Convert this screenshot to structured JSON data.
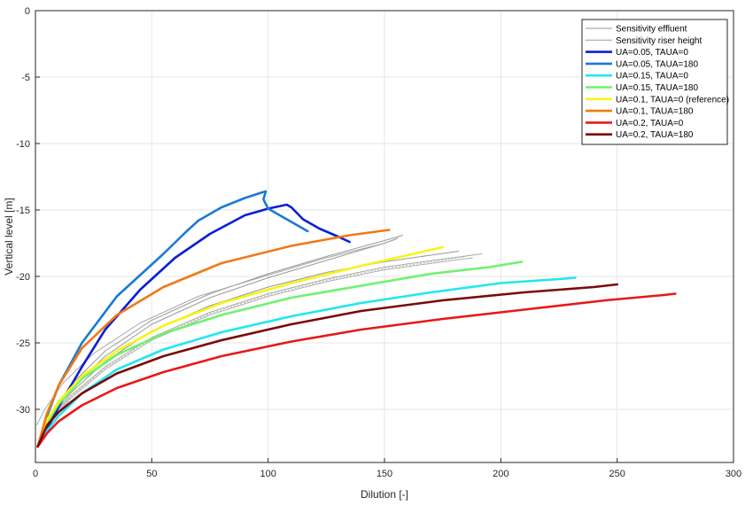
{
  "chart_data": {
    "type": "line",
    "title": "",
    "xlabel": "Dilution [-]",
    "ylabel": "Vertical level [m]",
    "xlim": [
      0,
      300
    ],
    "ylim": [
      -34,
      0
    ],
    "xticks": [
      0,
      50,
      100,
      150,
      200,
      250,
      300
    ],
    "yticks": [
      0,
      -5,
      -10,
      -15,
      -20,
      -25,
      -30
    ],
    "grid": true,
    "legend_position": "top-right",
    "colors": {
      "grid": "#e6e6e6",
      "axis": "#262626",
      "sensitivity": "#a0a0a0"
    },
    "sensitivity_series": [
      {
        "name": "Sensitivity effluent",
        "color": "#9a9a9a",
        "style": "thin",
        "x": [
          1,
          6,
          15,
          30,
          50,
          75,
          100,
          125,
          150,
          158
        ],
        "y": [
          -32.8,
          -30.6,
          -28.2,
          -25.6,
          -23.3,
          -21.3,
          -19.8,
          -18.5,
          -17.3,
          -16.9
        ]
      },
      {
        "name": "Sensitivity riser height",
        "color": "#9a9a9a",
        "style": "thin",
        "x": [
          1,
          6,
          15,
          30,
          50,
          75,
          100,
          125,
          150,
          155
        ],
        "y": [
          -32.8,
          -30.8,
          -28.5,
          -26.0,
          -23.6,
          -21.6,
          -20.1,
          -18.8,
          -17.5,
          -17.2
        ]
      },
      {
        "name": "",
        "color": "#a8a8a8",
        "style": "thin",
        "x": [
          0.5,
          4,
          12,
          25,
          45,
          70,
          100,
          125,
          150,
          156
        ],
        "y": [
          -31.2,
          -30.0,
          -28.0,
          -25.8,
          -23.5,
          -21.5,
          -19.9,
          -18.6,
          -17.5,
          -17.1
        ]
      },
      {
        "name": "",
        "color": "#9a9a9a",
        "style": "thin",
        "x": [
          1,
          6,
          15,
          30,
          50,
          75,
          100,
          125,
          150,
          170,
          182
        ],
        "y": [
          -32.8,
          -30.9,
          -28.8,
          -26.4,
          -24.1,
          -22.2,
          -20.8,
          -19.7,
          -18.9,
          -18.4,
          -18.1
        ]
      },
      {
        "name": "",
        "color": "#a8a8a8",
        "style": "thin",
        "x": [
          1,
          6,
          15,
          30,
          50,
          75,
          100,
          125,
          150,
          175,
          192
        ],
        "y": [
          -32.8,
          -31.0,
          -29.0,
          -26.8,
          -24.6,
          -22.7,
          -21.3,
          -20.2,
          -19.3,
          -18.7,
          -18.3
        ]
      },
      {
        "name": "",
        "color": "#b0b0b0",
        "style": "thin",
        "x": [
          1,
          6,
          15,
          30,
          50,
          75,
          100,
          125,
          150,
          175,
          188
        ],
        "y": [
          -32.8,
          -31.1,
          -29.2,
          -27.0,
          -24.8,
          -22.9,
          -21.5,
          -20.4,
          -19.5,
          -18.9,
          -18.6
        ]
      },
      {
        "name": "",
        "color": "#b8b8b8",
        "style": "dotted",
        "x": [
          1,
          6,
          15,
          30,
          50,
          75,
          100,
          125,
          150,
          175,
          185
        ],
        "y": [
          -32.8,
          -31.0,
          -29.1,
          -26.9,
          -24.7,
          -22.8,
          -21.4,
          -20.3,
          -19.4,
          -18.8,
          -18.5
        ]
      }
    ],
    "series": [
      {
        "name": "UA=0.05, TAUA=0",
        "color": "#0a1fd6",
        "x": [
          1,
          5,
          10,
          20,
          30,
          45,
          60,
          75,
          90,
          100,
          108,
          110,
          115,
          122,
          130,
          135
        ],
        "y": [
          -32.8,
          -31.5,
          -29.8,
          -26.8,
          -24.0,
          -21.0,
          -18.6,
          -16.8,
          -15.4,
          -14.9,
          -14.6,
          -14.8,
          -15.7,
          -16.4,
          -17.0,
          -17.4
        ]
      },
      {
        "name": "UA=0.05, TAUA=180",
        "color": "#1a7ad4",
        "x": [
          1,
          5,
          10,
          20,
          35,
          55,
          65,
          70,
          80,
          90,
          97,
          99,
          98,
          100,
          105,
          112,
          117
        ],
        "y": [
          -32.8,
          -30.5,
          -28.2,
          -25.0,
          -21.5,
          -18.3,
          -16.6,
          -15.8,
          -14.8,
          -14.1,
          -13.7,
          -13.6,
          -14.2,
          -14.9,
          -15.4,
          -16.1,
          -16.6
        ]
      },
      {
        "name": "UA=0.15, TAUA=0",
        "color": "#1ee8f0",
        "x": [
          1,
          5,
          10,
          20,
          35,
          55,
          80,
          110,
          140,
          170,
          200,
          225,
          232
        ],
        "y": [
          -32.8,
          -31.6,
          -30.5,
          -28.8,
          -27.0,
          -25.5,
          -24.2,
          -23.0,
          -22.0,
          -21.2,
          -20.5,
          -20.2,
          -20.1
        ]
      },
      {
        "name": "UA=0.15, TAUA=180",
        "color": "#6ef26e",
        "x": [
          1,
          5,
          10,
          20,
          35,
          55,
          80,
          110,
          140,
          170,
          195,
          209
        ],
        "y": [
          -32.8,
          -31.0,
          -29.6,
          -27.7,
          -25.9,
          -24.3,
          -22.9,
          -21.6,
          -20.7,
          -19.8,
          -19.3,
          -18.9
        ]
      },
      {
        "name": "UA=0.1, TAUA=0 (reference)",
        "color": "#f5f518",
        "x": [
          1,
          5,
          10,
          20,
          35,
          55,
          80,
          110,
          140,
          165,
          175
        ],
        "y": [
          -32.8,
          -30.8,
          -29.4,
          -27.5,
          -25.6,
          -23.7,
          -22.0,
          -20.5,
          -19.2,
          -18.2,
          -17.8
        ]
      },
      {
        "name": "UA=0.1, TAUA=180",
        "color": "#f07a14",
        "x": [
          1,
          5,
          10,
          20,
          35,
          55,
          80,
          110,
          135,
          152
        ],
        "y": [
          -32.8,
          -30.3,
          -28.2,
          -25.4,
          -22.9,
          -20.8,
          -19.0,
          -17.7,
          -16.9,
          -16.5
        ]
      },
      {
        "name": "UA=0.2, TAUA=0",
        "color": "#e81818",
        "x": [
          1,
          5,
          10,
          20,
          35,
          55,
          80,
          110,
          140,
          175,
          210,
          245,
          270,
          275
        ],
        "y": [
          -32.8,
          -31.8,
          -30.9,
          -29.7,
          -28.4,
          -27.2,
          -26.0,
          -24.9,
          -24.0,
          -23.2,
          -22.5,
          -21.8,
          -21.4,
          -21.3
        ]
      },
      {
        "name": "UA=0.2, TAUA=180",
        "color": "#7a0a0a",
        "x": [
          1,
          5,
          10,
          20,
          35,
          55,
          80,
          110,
          140,
          175,
          210,
          240,
          250
        ],
        "y": [
          -32.8,
          -31.2,
          -30.2,
          -28.8,
          -27.3,
          -26.0,
          -24.8,
          -23.6,
          -22.6,
          -21.8,
          -21.2,
          -20.8,
          -20.6
        ]
      }
    ],
    "legend": [
      {
        "label": "Sensitivity effluent",
        "color": "#9a9a9a",
        "thin": true
      },
      {
        "label": "Sensitivity riser height",
        "color": "#9a9a9a",
        "thin": true
      },
      {
        "label": "UA=0.05, TAUA=0",
        "color": "#0a1fd6"
      },
      {
        "label": "UA=0.05, TAUA=180",
        "color": "#1a7ad4"
      },
      {
        "label": "UA=0.15, TAUA=0",
        "color": "#1ee8f0"
      },
      {
        "label": "UA=0.15, TAUA=180",
        "color": "#6ef26e"
      },
      {
        "label": "UA=0.1, TAUA=0 (reference)",
        "color": "#f5f518"
      },
      {
        "label": "UA=0.1, TAUA=180",
        "color": "#f07a14"
      },
      {
        "label": "UA=0.2, TAUA=0",
        "color": "#e81818"
      },
      {
        "label": "UA=0.2, TAUA=180",
        "color": "#7a0a0a"
      }
    ]
  }
}
